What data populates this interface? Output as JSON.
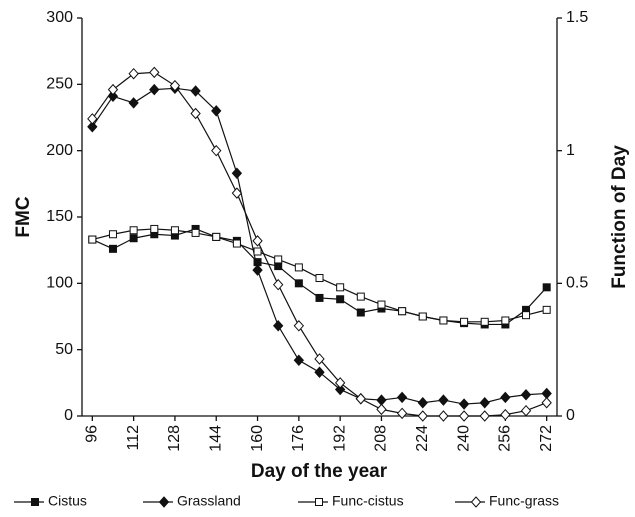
{
  "chart_data": {
    "type": "line",
    "x_label": "Day of the year",
    "y_label": "FMC",
    "y2_label": "Function of Day",
    "x": [
      96,
      104,
      112,
      120,
      128,
      136,
      144,
      152,
      160,
      168,
      176,
      184,
      192,
      200,
      208,
      216,
      224,
      232,
      240,
      248,
      256,
      264,
      272
    ],
    "xlim": [
      92,
      276
    ],
    "xticks": [
      96,
      112,
      128,
      144,
      160,
      176,
      192,
      208,
      224,
      240,
      256,
      272
    ],
    "ylim": [
      0,
      300
    ],
    "yticks": [
      0,
      50,
      100,
      150,
      200,
      250,
      300
    ],
    "y2lim": [
      0,
      1.5
    ],
    "y2ticks": [
      0,
      0.5,
      1,
      1.5
    ],
    "legend": "bottom",
    "series": [
      {
        "name": "Cistus",
        "color": "#111111",
        "marker": "square",
        "filled": true,
        "values": [
          133,
          126,
          134,
          137,
          136,
          141,
          135,
          132,
          116,
          113,
          100,
          89,
          88,
          78,
          81,
          79,
          75,
          72,
          70,
          69,
          69,
          80,
          97
        ]
      },
      {
        "name": "Grassland",
        "color": "#111111",
        "marker": "diamond",
        "filled": true,
        "values": [
          218,
          241,
          236,
          246,
          247,
          245,
          230,
          183,
          110,
          68,
          42,
          33,
          20,
          13,
          12,
          14,
          10,
          12,
          9,
          10,
          14,
          16,
          17
        ]
      },
      {
        "name": "Func-cistus",
        "color": "#111111",
        "marker": "square",
        "filled": false,
        "axis": "y2",
        "values": [
          0.665,
          0.685,
          0.7,
          0.705,
          0.7,
          0.69,
          0.675,
          0.65,
          0.62,
          0.59,
          0.56,
          0.52,
          0.485,
          0.45,
          0.42,
          0.395,
          0.375,
          0.36,
          0.355,
          0.355,
          0.36,
          0.38,
          0.4
        ]
      },
      {
        "name": "Func-grass",
        "color": "#111111",
        "marker": "diamond",
        "filled": false,
        "axis": "y2",
        "values": [
          1.12,
          1.23,
          1.29,
          1.295,
          1.245,
          1.14,
          1.0,
          0.84,
          0.66,
          0.495,
          0.34,
          0.215,
          0.125,
          0.065,
          0.025,
          0.01,
          0,
          0,
          0,
          0,
          0.005,
          0.02,
          0.05
        ]
      }
    ]
  }
}
